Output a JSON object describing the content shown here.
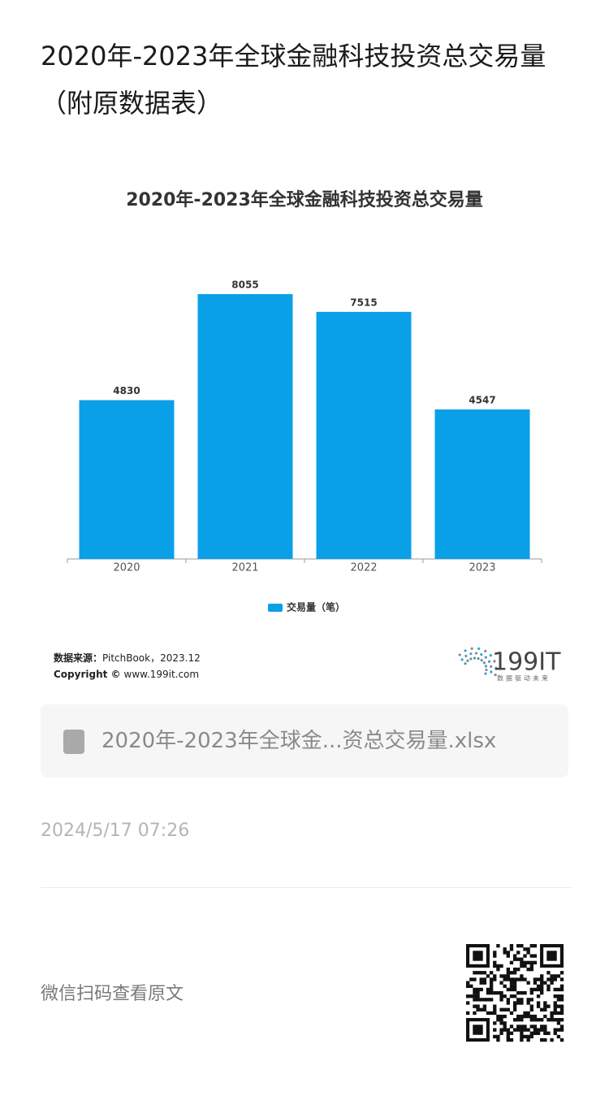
{
  "title": "2020年-2023年全球金融科技投资总交易量（附原数据表）",
  "chart_data": {
    "type": "bar",
    "title": "2020年-2023年全球金融科技投资总交易量",
    "categories": [
      "2020",
      "2021",
      "2022",
      "2023"
    ],
    "series": [
      {
        "name": "交易量（笔）",
        "color": "#0aa0e8",
        "values": [
          4830,
          8055,
          7515,
          4547
        ]
      }
    ],
    "legend": "bottom"
  },
  "source": {
    "label": "数据来源：",
    "text": "PitchBook，2023.12"
  },
  "copyright": {
    "label": "Copyright ©",
    "text": "www.199it.com"
  },
  "logo": {
    "name": "199IT",
    "slogan": "数据驱动未来"
  },
  "attachment": {
    "name": "2020年-2023年全球金...资总交易量.xlsx"
  },
  "date": "2024/5/17 07:26",
  "footer": "微信扫码查看原文"
}
